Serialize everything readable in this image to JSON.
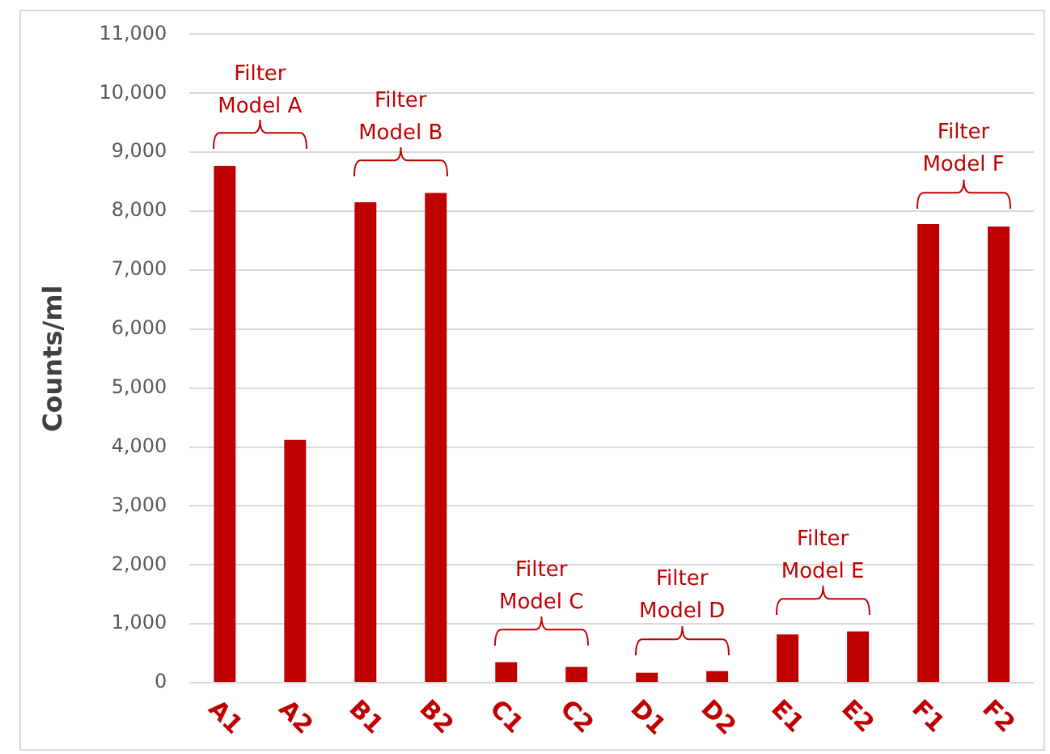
{
  "chart_data": {
    "type": "bar",
    "ylabel": "Counts/ml",
    "categories": [
      "A1",
      "A2",
      "B1",
      "B2",
      "C1",
      "C2",
      "D1",
      "D2",
      "E1",
      "E2",
      "F1",
      "F2"
    ],
    "values": [
      8770,
      4120,
      8150,
      8310,
      350,
      270,
      170,
      200,
      820,
      870,
      7780,
      7740
    ],
    "color": "#c00000",
    "ylim": [
      0,
      11000
    ],
    "yticks": [
      {
        "value": 0,
        "label": "0"
      },
      {
        "value": 1000,
        "label": "1,000"
      },
      {
        "value": 2000,
        "label": "2,000"
      },
      {
        "value": 3000,
        "label": "3,000"
      },
      {
        "value": 4000,
        "label": "4,000"
      },
      {
        "value": 5000,
        "label": "5,000"
      },
      {
        "value": 6000,
        "label": "6,000"
      },
      {
        "value": 7000,
        "label": "7,000"
      },
      {
        "value": 8000,
        "label": "8,000"
      },
      {
        "value": 9000,
        "label": "9,000"
      },
      {
        "value": 10000,
        "label": "10,000"
      },
      {
        "value": 11000,
        "label": "11,000"
      }
    ],
    "grid": "y",
    "legend": false,
    "annotations": [
      "Filter Model A",
      "Filter Model B",
      "Filter Model C",
      "Filter Model D",
      "Filter Model E",
      "Filter Model F"
    ]
  }
}
